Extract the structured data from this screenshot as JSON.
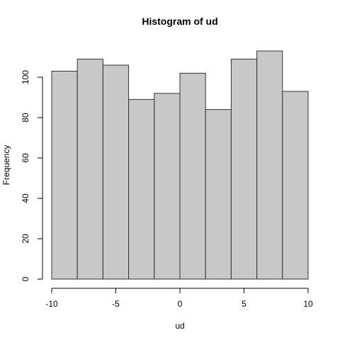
{
  "chart_data": {
    "type": "bar",
    "title": "Histogram of ud",
    "xlabel": "ud",
    "ylabel": "Frequency",
    "bin_edges": [
      -10,
      -8,
      -6,
      -4,
      -2,
      0,
      2,
      4,
      6,
      8,
      10
    ],
    "values": [
      103,
      109,
      106,
      89,
      92,
      102,
      84,
      109,
      113,
      93
    ],
    "xlim": [
      -10,
      10
    ],
    "ylim": [
      0,
      113
    ],
    "xticks": [
      -10,
      -5,
      0,
      5,
      10
    ],
    "yticks": [
      0,
      20,
      40,
      60,
      80,
      100
    ],
    "grid": false,
    "bar_fill": "#c8c8c8",
    "bar_stroke": "#333333"
  }
}
